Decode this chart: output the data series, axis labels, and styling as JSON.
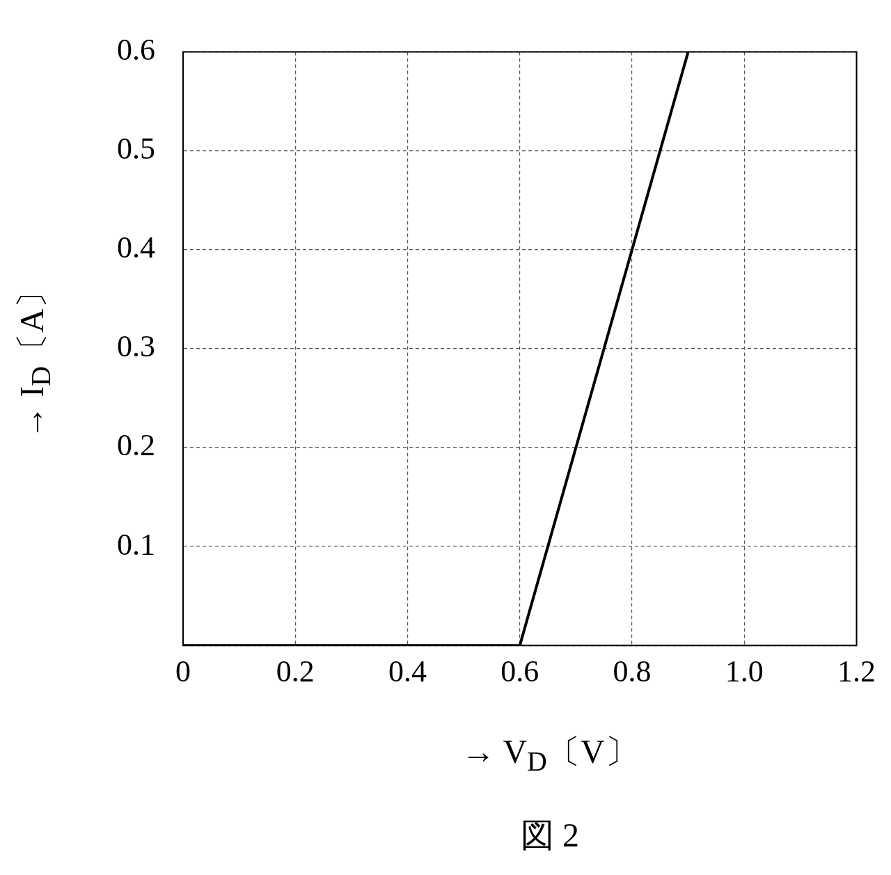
{
  "chart_data": {
    "type": "line",
    "title": "図 2",
    "xlabel": "→ V$_{D}$〔V〕",
    "ylabel": "→ I$_{D}$〔A〕",
    "x": [
      0,
      0.6,
      0.9
    ],
    "series": [
      {
        "color": "#000000",
        "values": [
          0,
          0,
          0.6
        ]
      }
    ],
    "xlim": [
      0,
      1.2
    ],
    "xticks": [
      {
        "value": 0,
        "label": "0"
      },
      0.2,
      0.4,
      0.6,
      0.8,
      {
        "value": 1,
        "label": "1.0"
      },
      1.2
    ],
    "ylim": [
      0,
      0.6
    ],
    "yticks": [
      {
        "value": 0,
        "label": null
      },
      0.1,
      0.2,
      0.3,
      0.4,
      0.5,
      0.6
    ],
    "grid": true,
    "legend": false,
    "marker": "none",
    "line_style": "solid"
  }
}
